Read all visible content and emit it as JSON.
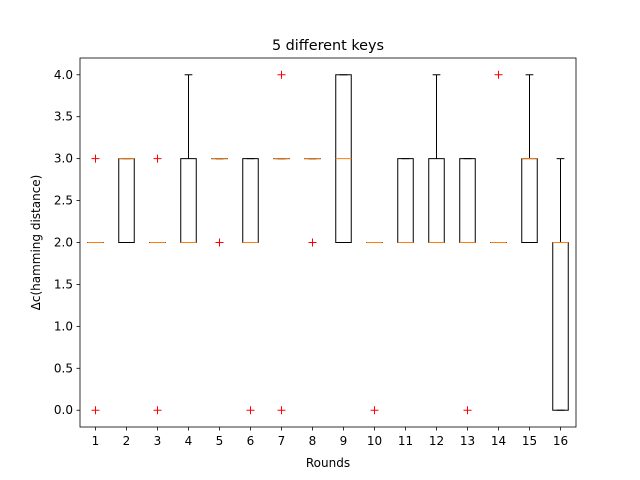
{
  "chart_data": {
    "type": "box",
    "title": "5 different keys",
    "xlabel": "Rounds",
    "ylabel": "Δc(hamming distance)",
    "ylim": [
      -0.2,
      4.2
    ],
    "yticks": [
      "0.0",
      "0.5",
      "1.0",
      "1.5",
      "2.0",
      "2.5",
      "3.0",
      "3.5",
      "4.0"
    ],
    "categories": [
      "1",
      "2",
      "3",
      "4",
      "5",
      "6",
      "7",
      "8",
      "9",
      "10",
      "11",
      "12",
      "13",
      "14",
      "15",
      "16"
    ],
    "grid": false,
    "colors": {
      "box": "#000000",
      "median": "#ff7f0e",
      "outlier": "#ff0000"
    },
    "boxes": [
      {
        "round": "1",
        "whislo": 2,
        "q1": 2,
        "med": 2,
        "q3": 2,
        "whishi": 2,
        "fliers": [
          0,
          3
        ]
      },
      {
        "round": "2",
        "whislo": 2,
        "q1": 2,
        "med": 3,
        "q3": 3,
        "whishi": 3,
        "fliers": []
      },
      {
        "round": "3",
        "whislo": 2,
        "q1": 2,
        "med": 2,
        "q3": 2,
        "whishi": 2,
        "fliers": [
          0,
          3
        ]
      },
      {
        "round": "4",
        "whislo": 2,
        "q1": 2,
        "med": 2,
        "q3": 3,
        "whishi": 4,
        "fliers": []
      },
      {
        "round": "5",
        "whislo": 3,
        "q1": 3,
        "med": 3,
        "q3": 3,
        "whishi": 3,
        "fliers": [
          2
        ]
      },
      {
        "round": "6",
        "whislo": 2,
        "q1": 2,
        "med": 2,
        "q3": 3,
        "whishi": 3,
        "fliers": [
          0
        ]
      },
      {
        "round": "7",
        "whislo": 3,
        "q1": 3,
        "med": 3,
        "q3": 3,
        "whishi": 3,
        "fliers": [
          0,
          4
        ]
      },
      {
        "round": "8",
        "whislo": 3,
        "q1": 3,
        "med": 3,
        "q3": 3,
        "whishi": 3,
        "fliers": [
          2
        ]
      },
      {
        "round": "9",
        "whislo": 2,
        "q1": 2,
        "med": 3,
        "q3": 4,
        "whishi": 4,
        "fliers": []
      },
      {
        "round": "10",
        "whislo": 2,
        "q1": 2,
        "med": 2,
        "q3": 2,
        "whishi": 2,
        "fliers": [
          0
        ]
      },
      {
        "round": "11",
        "whislo": 2,
        "q1": 2,
        "med": 2,
        "q3": 3,
        "whishi": 3,
        "fliers": []
      },
      {
        "round": "12",
        "whislo": 2,
        "q1": 2,
        "med": 2,
        "q3": 3,
        "whishi": 4,
        "fliers": []
      },
      {
        "round": "13",
        "whislo": 2,
        "q1": 2,
        "med": 2,
        "q3": 3,
        "whishi": 3,
        "fliers": [
          0
        ]
      },
      {
        "round": "14",
        "whislo": 2,
        "q1": 2,
        "med": 2,
        "q3": 2,
        "whishi": 2,
        "fliers": [
          4
        ]
      },
      {
        "round": "15",
        "whislo": 2,
        "q1": 2,
        "med": 3,
        "q3": 3,
        "whishi": 4,
        "fliers": []
      },
      {
        "round": "16",
        "whislo": 0,
        "q1": 0,
        "med": 2,
        "q3": 2,
        "whishi": 3,
        "fliers": []
      }
    ]
  }
}
